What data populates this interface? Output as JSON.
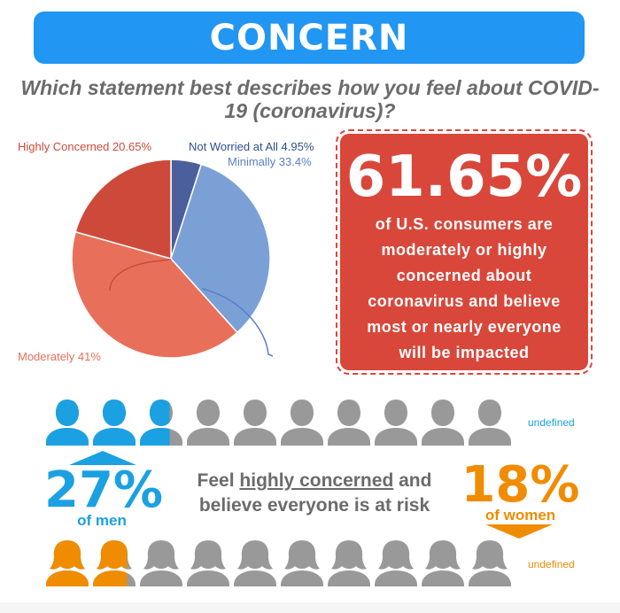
{
  "banner": {
    "title": "CONCERN"
  },
  "question": "Which statement best describes how you feel about COVID-19 (coronavirus)?",
  "chart_data": {
    "type": "pie",
    "title": "",
    "slices": [
      {
        "label": "Not Worried at All",
        "value": 4.95,
        "display": "Not Worried at All 4.95%",
        "color": "#4a5f9b"
      },
      {
        "label": "Minimally",
        "value": 33.4,
        "display": "Minimally 33.4%",
        "color": "#7ba0d6"
      },
      {
        "label": "Moderately",
        "value": 41,
        "display": "Moderately 41%",
        "color": "#e8705a"
      },
      {
        "label": "Highly Concerned",
        "value": 20.65,
        "display": "Highly Concerned 20.65%",
        "color": "#cd4a3a"
      }
    ]
  },
  "callout": {
    "percent": "61.65%",
    "lines": [
      "of U.S. consumers are",
      "moderately or highly",
      "concerned about",
      "coronavirus and believe",
      "most or nearly everyone",
      "will be impacted"
    ]
  },
  "men": {
    "percent": "27%",
    "label": "of men",
    "fraction": 0.27,
    "color": "#1ba1e2",
    "row_label": "undefined"
  },
  "women": {
    "percent": "18%",
    "label": "of women",
    "fraction": 0.18,
    "color": "#f08c00",
    "row_label": "undefined"
  },
  "middle": {
    "pre": "Feel ",
    "emphasis": "highly concerned",
    "post": " and",
    "line2": "believe everyone is at risk"
  },
  "colors": {
    "banner": "#2196f3",
    "callout": "#d9473b",
    "grey_person": "#999999"
  }
}
